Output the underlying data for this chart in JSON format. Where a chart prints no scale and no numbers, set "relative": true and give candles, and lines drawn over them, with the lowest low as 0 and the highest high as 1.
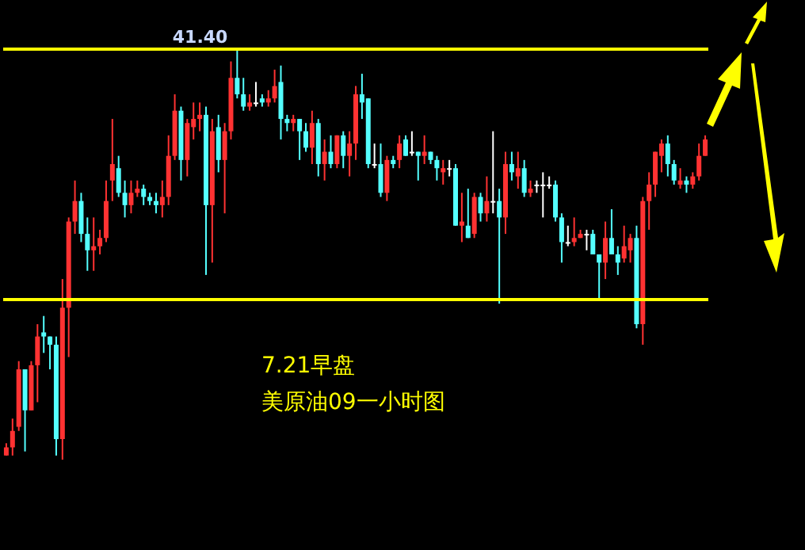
{
  "chart_data": {
    "type": "candlestick",
    "relative": true,
    "categories": [
      null,
      null,
      null,
      null,
      null,
      null,
      null,
      null,
      null,
      null,
      null,
      null,
      null,
      null,
      null,
      null,
      null,
      null,
      null,
      null,
      null,
      null,
      null,
      null,
      null,
      null,
      null,
      null,
      null,
      null,
      null,
      null,
      null,
      null,
      null,
      null,
      null,
      null,
      null,
      null,
      null,
      null,
      null,
      null,
      null,
      null,
      null,
      null,
      null,
      null,
      null,
      null,
      null,
      null,
      null,
      null,
      null,
      null,
      null,
      null,
      null,
      null,
      null,
      null,
      null,
      null,
      null,
      null,
      null,
      null,
      null,
      null,
      null,
      null,
      null,
      null,
      null,
      null,
      null,
      null,
      null,
      null,
      null,
      null,
      null,
      null,
      null,
      null,
      null,
      null,
      null,
      null,
      null,
      null,
      null,
      null,
      null,
      null,
      null,
      null,
      null,
      null,
      null,
      null,
      null,
      null,
      null,
      null,
      null,
      null,
      null,
      null,
      null
    ],
    "ohlc": [
      [
        0.01,
        0.04,
        0.01,
        0.03
      ],
      [
        0.03,
        0.1,
        0.01,
        0.07
      ],
      [
        0.08,
        0.24,
        0.07,
        0.22
      ],
      [
        0.22,
        0.22,
        0.02,
        0.12
      ],
      [
        0.12,
        0.24,
        0.12,
        0.23
      ],
      [
        0.23,
        0.33,
        0.14,
        0.3
      ],
      [
        0.31,
        0.35,
        0.26,
        0.3
      ],
      [
        0.3,
        0.3,
        0.22,
        0.28
      ],
      [
        0.28,
        0.3,
        0.01,
        0.05
      ],
      [
        0.05,
        0.44,
        0,
        0.37
      ],
      [
        0.37,
        0.59,
        0.25,
        0.58
      ],
      [
        0.58,
        0.68,
        0.55,
        0.63
      ],
      [
        0.63,
        0.65,
        0.53,
        0.55
      ],
      [
        0.55,
        0.59,
        0.46,
        0.51
      ],
      [
        0.51,
        0.59,
        0.46,
        0.52
      ],
      [
        0.52,
        0.56,
        0.5,
        0.54
      ],
      [
        0.54,
        0.68,
        0.53,
        0.63
      ],
      [
        0.68,
        0.83,
        0.63,
        0.72
      ],
      [
        0.71,
        0.74,
        0.64,
        0.65
      ],
      [
        0.65,
        0.68,
        0.59,
        0.62
      ],
      [
        0.62,
        0.68,
        0.6,
        0.65
      ],
      [
        0.65,
        0.68,
        0.64,
        0.66
      ],
      [
        0.66,
        0.67,
        0.62,
        0.64
      ],
      [
        0.64,
        0.65,
        0.62,
        0.63
      ],
      [
        0.63,
        0.65,
        0.6,
        0.62
      ],
      [
        0.62,
        0.68,
        0.59,
        0.64
      ],
      [
        0.64,
        0.79,
        0.62,
        0.74
      ],
      [
        0.74,
        0.89,
        0.73,
        0.85
      ],
      [
        0.85,
        0.86,
        0.68,
        0.73
      ],
      [
        0.73,
        0.83,
        0.69,
        0.82
      ],
      [
        0.81,
        0.87,
        0.78,
        0.83
      ],
      [
        0.83,
        0.87,
        0.8,
        0.84
      ],
      [
        0.84,
        0.86,
        0.45,
        0.62
      ],
      [
        0.62,
        0.83,
        0.48,
        0.8
      ],
      [
        0.81,
        0.84,
        0.7,
        0.73
      ],
      [
        0.73,
        0.82,
        0.6,
        0.8
      ],
      [
        0.8,
        0.97,
        0.78,
        0.93
      ],
      [
        0.93,
        1,
        0.88,
        0.89
      ],
      [
        0.89,
        0.93,
        0.85,
        0.86
      ],
      [
        0.86,
        0.89,
        0.85,
        0.87
      ],
      [
        0.87,
        0.92,
        0.86,
        0.87
      ],
      [
        0.88,
        0.89,
        0.86,
        0.87
      ],
      [
        0.87,
        0.9,
        0.86,
        0.88
      ],
      [
        0.88,
        0.95,
        0.87,
        0.91
      ],
      [
        0.92,
        0.96,
        0.78,
        0.83
      ],
      [
        0.83,
        0.84,
        0.8,
        0.82
      ],
      [
        0.82,
        0.84,
        0.8,
        0.83
      ],
      [
        0.83,
        0.83,
        0.73,
        0.8
      ],
      [
        0.8,
        0.82,
        0.75,
        0.76
      ],
      [
        0.76,
        0.85,
        0.72,
        0.82
      ],
      [
        0.82,
        0.83,
        0.69,
        0.72
      ],
      [
        0.72,
        0.78,
        0.68,
        0.75
      ],
      [
        0.75,
        0.79,
        0.71,
        0.72
      ],
      [
        0.72,
        0.79,
        0.71,
        0.79
      ],
      [
        0.79,
        0.8,
        0.71,
        0.74
      ],
      [
        0.74,
        0.8,
        0.69,
        0.77
      ],
      [
        0.77,
        0.91,
        0.73,
        0.89
      ],
      [
        0.89,
        0.94,
        0.83,
        0.87
      ],
      [
        0.88,
        0.88,
        0.71,
        0.72
      ],
      [
        0.72,
        0.77,
        0.71,
        0.72
      ],
      [
        0.72,
        0.77,
        0.64,
        0.65
      ],
      [
        0.65,
        0.74,
        0.63,
        0.73
      ],
      [
        0.73,
        0.74,
        0.71,
        0.72
      ],
      [
        0.73,
        0.79,
        0.71,
        0.77
      ],
      [
        0.78,
        0.79,
        0.74,
        0.74
      ],
      [
        0.75,
        0.8,
        0.74,
        0.75
      ],
      [
        0.75,
        0.75,
        0.68,
        0.74
      ],
      [
        0.74,
        0.79,
        0.72,
        0.75
      ],
      [
        0.75,
        0.75,
        0.72,
        0.73
      ],
      [
        0.73,
        0.74,
        0.68,
        0.71
      ],
      [
        0.7,
        0.73,
        0.67,
        0.71
      ],
      [
        0.71,
        0.73,
        0.69,
        0.71
      ],
      [
        0.71,
        0.72,
        0.57,
        0.57
      ],
      [
        0.57,
        0.65,
        0.53,
        0.58
      ],
      [
        0.57,
        0.66,
        0.54,
        0.54
      ],
      [
        0.55,
        0.65,
        0.54,
        0.64
      ],
      [
        0.64,
        0.65,
        0.58,
        0.6
      ],
      [
        0.6,
        0.69,
        0.58,
        0.63
      ],
      [
        0.63,
        0.8,
        0.6,
        0.63
      ],
      [
        0.63,
        0.66,
        0.38,
        0.59
      ],
      [
        0.59,
        0.75,
        0.55,
        0.72
      ],
      [
        0.72,
        0.75,
        0.68,
        0.7
      ],
      [
        0.69,
        0.75,
        0.66,
        0.71
      ],
      [
        0.71,
        0.73,
        0.64,
        0.65
      ],
      [
        0.65,
        0.68,
        0.64,
        0.66
      ],
      [
        0.67,
        0.68,
        0.65,
        0.67
      ],
      [
        0.67,
        0.7,
        0.59,
        0.67
      ],
      [
        0.67,
        0.69,
        0.66,
        0.67
      ],
      [
        0.67,
        0.68,
        0.58,
        0.59
      ],
      [
        0.59,
        0.6,
        0.48,
        0.53
      ],
      [
        0.53,
        0.57,
        0.52,
        0.53
      ],
      [
        0.53,
        0.59,
        0.52,
        0.54
      ],
      [
        0.54,
        0.56,
        0.54,
        0.55
      ],
      [
        0.55,
        0.56,
        0.51,
        0.55
      ],
      [
        0.55,
        0.56,
        0.5,
        0.5
      ],
      [
        0.5,
        0.5,
        0.39,
        0.48
      ],
      [
        0.48,
        0.58,
        0.44,
        0.54
      ],
      [
        0.54,
        0.61,
        0.5,
        0.5
      ],
      [
        0.5,
        0.52,
        0.45,
        0.48
      ],
      [
        0.49,
        0.57,
        0.48,
        0.52
      ],
      [
        0.51,
        0.55,
        0.48,
        0.54
      ],
      [
        0.54,
        0.57,
        0.32,
        0.33
      ],
      [
        0.33,
        0.64,
        0.28,
        0.63
      ],
      [
        0.63,
        0.7,
        0.56,
        0.67
      ],
      [
        0.67,
        0.75,
        0.64,
        0.75
      ],
      [
        0.74,
        0.78,
        0.7,
        0.77
      ],
      [
        0.77,
        0.79,
        0.69,
        0.72
      ],
      [
        0.72,
        0.73,
        0.67,
        0.68
      ],
      [
        0.67,
        0.71,
        0.66,
        0.68
      ],
      [
        0.68,
        0.69,
        0.65,
        0.67
      ],
      [
        0.67,
        0.7,
        0.66,
        0.69
      ],
      [
        0.69,
        0.77,
        0.68,
        0.74
      ],
      [
        0.74,
        0.79,
        0.74,
        0.78
      ]
    ],
    "colors": [
      "#ff3232",
      "#ff3232",
      "#ff3232",
      "#54ffff",
      "#ff3232",
      "#ff3232",
      "#54ffff",
      "#54ffff",
      "#54ffff",
      "#ff3232",
      "#ff3232",
      "#ff3232",
      "#54ffff",
      "#54ffff",
      "#ff3232",
      "#ff3232",
      "#ff3232",
      "#ff3232",
      "#54ffff",
      "#54ffff",
      "#ff3232",
      "#ff3232",
      "#54ffff",
      "#54ffff",
      "#54ffff",
      "#ff3232",
      "#ff3232",
      "#ff3232",
      "#54ffff",
      "#ff3232",
      "#ff3232",
      "#ff3232",
      "#54ffff",
      "#ff3232",
      "#54ffff",
      "#ff3232",
      "#ff3232",
      "#54ffff",
      "#54ffff",
      "#ff3232",
      "#ffffff",
      "#54ffff",
      "#ff3232",
      "#ff3232",
      "#54ffff",
      "#54ffff",
      "#ff3232",
      "#54ffff",
      "#54ffff",
      "#ff3232",
      "#54ffff",
      "#ff3232",
      "#54ffff",
      "#ff3232",
      "#54ffff",
      "#ff3232",
      "#ff3232",
      "#54ffff",
      "#54ffff",
      "#ffffff",
      "#54ffff",
      "#ff3232",
      "#54ffff",
      "#ff3232",
      "#54ffff",
      "#ffffff",
      "#54ffff",
      "#ff3232",
      "#54ffff",
      "#54ffff",
      "#ff3232",
      "#ffffff",
      "#54ffff",
      "#ff3232",
      "#54ffff",
      "#ff3232",
      "#54ffff",
      "#ff3232",
      "#ffffff",
      "#54ffff",
      "#ff3232",
      "#54ffff",
      "#ff3232",
      "#54ffff",
      "#ff3232",
      "#ffffff",
      "#ffffff",
      "#ffffff",
      "#54ffff",
      "#54ffff",
      "#ffffff",
      "#ff3232",
      "#ff3232",
      "#ffffff",
      "#54ffff",
      "#54ffff",
      "#ff3232",
      "#54ffff",
      "#54ffff",
      "#ff3232",
      "#ff3232",
      "#54ffff",
      "#ff3232",
      "#ff3232",
      "#ff3232",
      "#ff3232",
      "#54ffff",
      "#54ffff",
      "#ff3232",
      "#54ffff",
      "#ff3232",
      "#ff3232",
      "#ff3232"
    ],
    "ref_lines": [
      {
        "axis": "y",
        "value": 1,
        "color": "#ffff00"
      },
      {
        "axis": "y",
        "value": 0.39,
        "color": "#ffff00"
      }
    ],
    "annotations": [
      {
        "text": "41.40",
        "y": 1
      },
      "7.21早盘",
      "美原油09一小时图"
    ]
  }
}
